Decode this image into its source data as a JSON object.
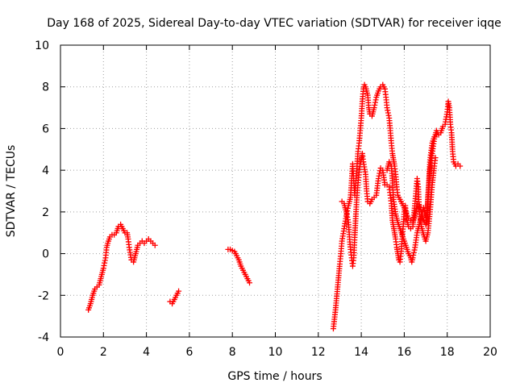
{
  "chart_data": {
    "type": "scatter",
    "title": "Day 168 of 2025, Sidereal Day-to-day VTEC variation (SDTVAR) for receiver iqqe",
    "xlabel": "GPS time / hours",
    "ylabel": "SDTVAR / TECUs",
    "xlim": [
      0,
      20
    ],
    "ylim": [
      -4,
      10
    ],
    "xticks": [
      0,
      2,
      4,
      6,
      8,
      10,
      12,
      14,
      16,
      18,
      20
    ],
    "yticks": [
      -4,
      -2,
      0,
      2,
      4,
      6,
      8,
      10
    ],
    "grid": true,
    "marker": "+",
    "series": [
      {
        "name": "SDTVAR",
        "color": "#ff0000",
        "segments": [
          [
            [
              1.3,
              -2.7
            ],
            [
              1.4,
              -2.4
            ],
            [
              1.5,
              -2.0
            ],
            [
              1.6,
              -1.7
            ],
            [
              1.7,
              -1.6
            ],
            [
              1.8,
              -1.5
            ],
            [
              1.9,
              -1.1
            ],
            [
              2.0,
              -0.7
            ],
            [
              2.1,
              -0.2
            ],
            [
              2.15,
              0.3
            ],
            [
              2.2,
              0.5
            ],
            [
              2.3,
              0.8
            ],
            [
              2.4,
              0.9
            ],
            [
              2.5,
              0.9
            ],
            [
              2.6,
              1.0
            ],
            [
              2.7,
              1.3
            ],
            [
              2.8,
              1.4
            ],
            [
              2.9,
              1.2
            ],
            [
              3.0,
              1.0
            ],
            [
              3.1,
              1.0
            ],
            [
              3.15,
              0.7
            ],
            [
              3.2,
              0.3
            ],
            [
              3.3,
              -0.3
            ],
            [
              3.4,
              -0.4
            ],
            [
              3.5,
              0.0
            ],
            [
              3.6,
              0.4
            ],
            [
              3.7,
              0.5
            ],
            [
              3.8,
              0.6
            ],
            [
              3.9,
              0.5
            ],
            [
              4.0,
              0.6
            ],
            [
              4.1,
              0.7
            ],
            [
              4.2,
              0.6
            ],
            [
              4.3,
              0.5
            ],
            [
              4.4,
              0.4
            ]
          ],
          [
            [
              5.1,
              -2.3
            ],
            [
              5.2,
              -2.4
            ],
            [
              5.3,
              -2.2
            ],
            [
              5.4,
              -2.0
            ],
            [
              5.5,
              -1.8
            ]
          ],
          [
            [
              7.8,
              0.2
            ],
            [
              7.9,
              0.2
            ],
            [
              8.0,
              0.15
            ],
            [
              8.1,
              0.1
            ],
            [
              8.3,
              -0.3
            ],
            [
              8.4,
              -0.6
            ],
            [
              8.5,
              -0.8
            ],
            [
              8.6,
              -1.0
            ],
            [
              8.7,
              -1.2
            ],
            [
              8.8,
              -1.4
            ]
          ],
          [
            [
              12.7,
              -3.6
            ],
            [
              12.8,
              -2.7
            ],
            [
              12.9,
              -1.6
            ],
            [
              13.0,
              -0.5
            ],
            [
              13.05,
              0.0
            ],
            [
              13.1,
              0.6
            ],
            [
              13.2,
              1.2
            ],
            [
              13.3,
              1.8
            ],
            [
              13.4,
              2.3
            ],
            [
              13.5,
              2.7
            ],
            [
              13.55,
              3.5
            ],
            [
              13.6,
              4.3
            ],
            [
              13.65,
              3.5
            ],
            [
              13.7,
              2.8
            ],
            [
              13.75,
              3.5
            ],
            [
              13.8,
              4.2
            ],
            [
              13.85,
              4.9
            ],
            [
              13.9,
              5.3
            ],
            [
              14.0,
              6.5
            ],
            [
              14.05,
              7.3
            ],
            [
              14.1,
              7.9
            ],
            [
              14.15,
              8.1
            ],
            [
              14.2,
              8.0
            ],
            [
              14.3,
              7.6
            ],
            [
              14.35,
              7.0
            ],
            [
              14.4,
              6.7
            ],
            [
              14.5,
              6.6
            ],
            [
              14.6,
              7.0
            ],
            [
              14.7,
              7.5
            ],
            [
              14.8,
              7.8
            ],
            [
              14.9,
              8.0
            ],
            [
              15.0,
              8.1
            ],
            [
              15.1,
              7.9
            ],
            [
              15.15,
              7.5
            ],
            [
              15.2,
              7.0
            ],
            [
              15.3,
              6.5
            ],
            [
              15.35,
              5.9
            ],
            [
              15.4,
              5.3
            ],
            [
              15.45,
              4.8
            ],
            [
              15.5,
              4.5
            ],
            [
              15.55,
              4.2
            ],
            [
              15.6,
              3.8
            ],
            [
              15.65,
              3.2
            ],
            [
              15.7,
              2.8
            ],
            [
              15.8,
              2.6
            ],
            [
              15.9,
              2.4
            ],
            [
              16.0,
              2.2
            ],
            [
              16.1,
              1.9
            ],
            [
              16.2,
              1.7
            ],
            [
              16.3,
              1.6
            ],
            [
              16.4,
              1.5
            ],
            [
              16.5,
              1.8
            ],
            [
              16.6,
              2.4
            ],
            [
              16.7,
              2.3
            ],
            [
              16.8,
              2.0
            ],
            [
              16.9,
              1.6
            ],
            [
              17.0,
              1.4
            ],
            [
              17.1,
              2.5
            ],
            [
              17.2,
              4.0
            ],
            [
              17.3,
              4.8
            ],
            [
              17.4,
              5.5
            ],
            [
              17.5,
              5.9
            ],
            [
              17.6,
              5.7
            ],
            [
              17.7,
              5.8
            ],
            [
              17.8,
              6.1
            ],
            [
              17.9,
              6.2
            ],
            [
              18.0,
              6.8
            ],
            [
              18.05,
              7.3
            ],
            [
              18.1,
              7.0
            ],
            [
              18.15,
              6.2
            ],
            [
              18.2,
              5.8
            ],
            [
              18.25,
              4.9
            ],
            [
              18.3,
              4.4
            ],
            [
              18.4,
              4.2
            ],
            [
              18.5,
              4.3
            ],
            [
              18.6,
              4.2
            ]
          ],
          [
            [
              13.1,
              2.5
            ],
            [
              13.2,
              2.4
            ],
            [
              13.3,
              2.0
            ],
            [
              13.4,
              1.5
            ],
            [
              13.45,
              0.8
            ],
            [
              13.5,
              0.2
            ],
            [
              13.55,
              -0.2
            ],
            [
              13.6,
              -0.6
            ],
            [
              13.65,
              -0.2
            ],
            [
              13.7,
              0.9
            ],
            [
              13.75,
              1.9
            ],
            [
              13.8,
              2.8
            ],
            [
              13.85,
              3.4
            ],
            [
              13.9,
              3.9
            ],
            [
              13.95,
              4.3
            ],
            [
              14.0,
              4.5
            ],
            [
              14.05,
              4.8
            ],
            [
              14.1,
              4.4
            ],
            [
              14.2,
              3.8
            ],
            [
              14.25,
              3.0
            ],
            [
              14.3,
              2.5
            ],
            [
              14.4,
              2.4
            ],
            [
              14.5,
              2.6
            ],
            [
              14.6,
              2.7
            ],
            [
              14.7,
              2.8
            ],
            [
              14.8,
              3.6
            ],
            [
              14.9,
              4.1
            ],
            [
              15.0,
              4.0
            ],
            [
              15.1,
              3.3
            ],
            [
              15.2,
              3.3
            ],
            [
              15.3,
              3.2
            ],
            [
              15.35,
              2.8
            ],
            [
              15.4,
              2.4
            ],
            [
              15.45,
              1.6
            ],
            [
              15.5,
              1.3
            ],
            [
              15.55,
              1.0
            ],
            [
              15.6,
              0.7
            ],
            [
              15.65,
              0.3
            ],
            [
              15.7,
              0.0
            ],
            [
              15.75,
              -0.3
            ],
            [
              15.8,
              -0.4
            ],
            [
              15.85,
              0.0
            ],
            [
              15.9,
              0.7
            ],
            [
              15.95,
              1.3
            ],
            [
              16.0,
              2.0
            ],
            [
              16.05,
              2.3
            ],
            [
              16.1,
              1.7
            ],
            [
              16.2,
              1.3
            ],
            [
              16.3,
              1.2
            ],
            [
              16.4,
              1.3
            ],
            [
              16.5,
              2.4
            ],
            [
              16.55,
              3.0
            ],
            [
              16.6,
              3.6
            ],
            [
              16.65,
              3.2
            ],
            [
              16.7,
              2.0
            ],
            [
              16.8,
              1.3
            ],
            [
              16.9,
              0.9
            ],
            [
              17.0,
              0.6
            ],
            [
              17.1,
              1.0
            ],
            [
              17.2,
              2.0
            ],
            [
              17.3,
              3.3
            ],
            [
              17.4,
              4.2
            ],
            [
              17.45,
              4.6
            ]
          ],
          [
            [
              15.2,
              4.0
            ],
            [
              15.3,
              4.4
            ],
            [
              15.4,
              4.2
            ],
            [
              15.45,
              3.5
            ],
            [
              15.5,
              2.6
            ],
            [
              15.6,
              1.9
            ],
            [
              15.7,
              1.5
            ],
            [
              15.8,
              1.2
            ],
            [
              15.9,
              0.9
            ],
            [
              16.0,
              0.6
            ],
            [
              16.1,
              0.3
            ],
            [
              16.2,
              0.0
            ],
            [
              16.3,
              -0.2
            ],
            [
              16.35,
              -0.4
            ],
            [
              16.4,
              -0.2
            ],
            [
              16.5,
              0.3
            ],
            [
              16.6,
              1.0
            ],
            [
              16.7,
              1.4
            ],
            [
              16.8,
              1.8
            ],
            [
              16.9,
              2.2
            ],
            [
              17.0,
              1.8
            ],
            [
              17.05,
              1.5
            ],
            [
              17.1,
              2.7
            ],
            [
              17.15,
              3.5
            ],
            [
              17.2,
              4.5
            ],
            [
              17.3,
              5.3
            ],
            [
              17.4,
              5.6
            ],
            [
              17.5,
              5.7
            ]
          ]
        ]
      }
    ]
  }
}
